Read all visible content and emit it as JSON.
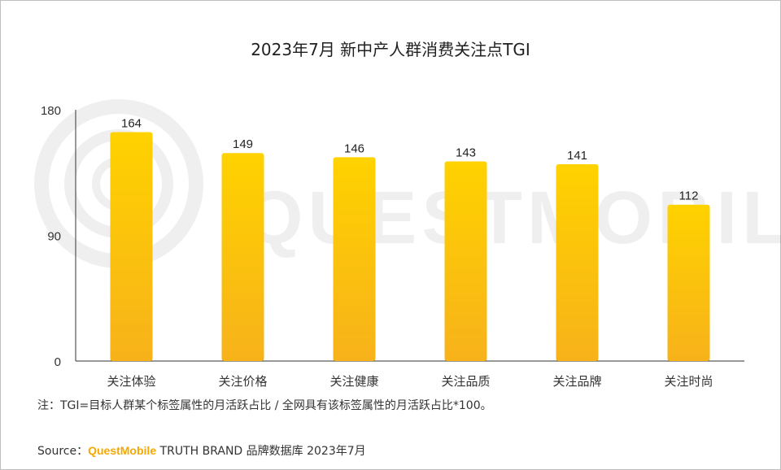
{
  "title": "2023年7月 新中产人群消费关注点TGI",
  "watermark": {
    "text": "QUESTMOBILE"
  },
  "note": "注：TGI=目标人群某个标签属性的月活跃占比 / 全网具有该标签属性的月活跃占比*100。",
  "source": {
    "label": "Source：",
    "brand": "QuestMobile",
    "rest": " TRUTH BRAND 品牌数据库 2023年7月"
  },
  "colors": {
    "bar_top": "#ffd200",
    "bar_bottom": "#f7b21a",
    "axis": "#333333"
  },
  "chart_data": {
    "type": "bar",
    "title": "2023年7月 新中产人群消费关注点TGI",
    "categories": [
      "关注体验",
      "关注价格",
      "关注健康",
      "关注品质",
      "关注品牌",
      "关注时尚"
    ],
    "values": [
      164,
      149,
      146,
      143,
      141,
      112
    ],
    "ylim": [
      0,
      180
    ],
    "yticks": [
      0,
      90,
      180
    ],
    "grid": false,
    "legend": "none"
  }
}
